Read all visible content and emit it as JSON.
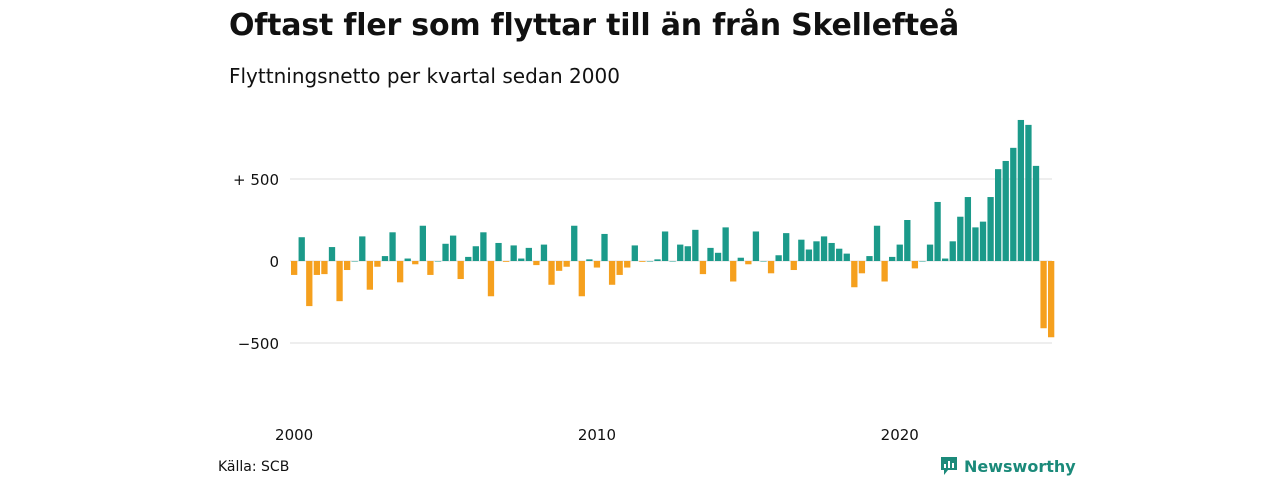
{
  "title": "Oftast fler som flyttar till än från Skellefteå",
  "subtitle": "Flyttningsnetto per kvartal sedan 2000",
  "source": "Källa: SCB",
  "brand": "Newsworthy",
  "colors": {
    "positive": "#1b9a8a",
    "negative": "#f5a01e",
    "grid": "#dddddd",
    "brand": "#1b8a7a"
  },
  "chart_data": {
    "type": "bar",
    "start_year": 2000,
    "periods_per_year": 4,
    "ylim": [
      -650,
      850
    ],
    "yticks": [
      {
        "value": 500,
        "label": "+ 500"
      },
      {
        "value": 0,
        "label": "0"
      },
      {
        "value": -500,
        "label": "−500"
      }
    ],
    "xticks": [
      2000,
      2010,
      2020
    ],
    "grid": true,
    "values": [
      -85,
      145,
      -275,
      -85,
      -80,
      85,
      -245,
      -55,
      0,
      150,
      -175,
      -35,
      30,
      175,
      -130,
      15,
      -20,
      215,
      -85,
      0,
      105,
      155,
      -110,
      25,
      90,
      175,
      -215,
      110,
      -5,
      95,
      15,
      80,
      -25,
      100,
      -145,
      -60,
      -35,
      215,
      -215,
      10,
      -40,
      165,
      -145,
      -85,
      -40,
      95,
      -5,
      0,
      10,
      180,
      0,
      100,
      90,
      190,
      -80,
      80,
      50,
      205,
      -125,
      20,
      -20,
      180,
      0,
      -75,
      35,
      170,
      -55,
      130,
      70,
      120,
      150,
      110,
      75,
      45,
      -160,
      -75,
      30,
      215,
      -125,
      25,
      100,
      250,
      -45,
      0,
      100,
      360,
      15,
      120,
      270,
      390,
      205,
      240,
      390,
      560,
      610,
      690,
      860,
      830,
      580,
      -410,
      -465
    ]
  }
}
